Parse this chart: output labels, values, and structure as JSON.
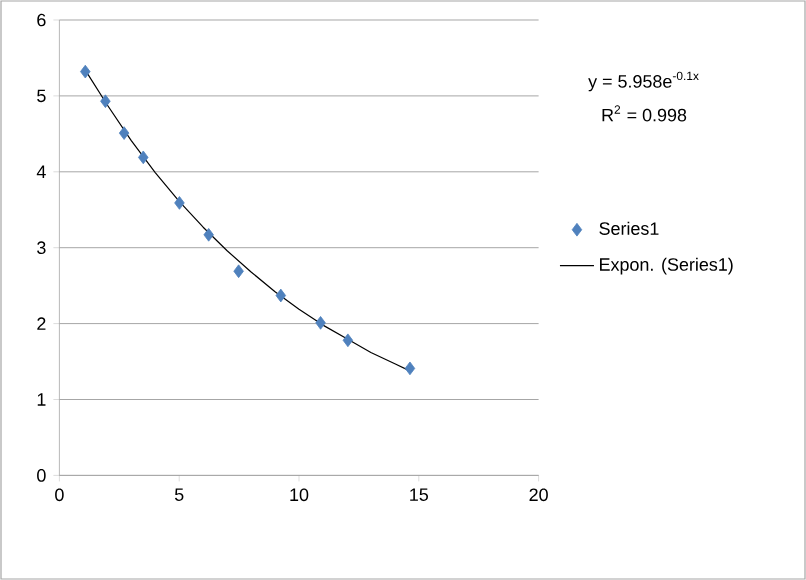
{
  "chart_data": {
    "type": "scatter",
    "series": [
      {
        "name": "Series1",
        "color": "#4f81bd",
        "marker": "diamond",
        "x": [
          1.08,
          1.92,
          2.7,
          3.5,
          5.01,
          6.23,
          7.48,
          9.24,
          10.9,
          12.04,
          14.63
        ],
        "values": [
          5.32,
          4.93,
          4.51,
          4.19,
          3.59,
          3.17,
          2.69,
          2.37,
          2.01,
          1.78,
          1.41
        ]
      },
      {
        "name": "Expon. (Series1)",
        "type": "line",
        "color": "#000000",
        "marker": "none",
        "line_style": "solid",
        "x": [
          1.1,
          2,
          3,
          4,
          5,
          6,
          7,
          8,
          9,
          10,
          11,
          12,
          13,
          14,
          14.6
        ],
        "values": [
          5.33,
          4.88,
          4.41,
          3.99,
          3.61,
          3.27,
          2.96,
          2.68,
          2.42,
          2.19,
          1.98,
          1.8,
          1.62,
          1.47,
          1.38
        ]
      }
    ],
    "xlim": [
      0,
      20
    ],
    "xticks": [
      0,
      5,
      10,
      15,
      20
    ],
    "ylim": [
      0,
      6
    ],
    "yticks": [
      0,
      1,
      2,
      3,
      4,
      5,
      6
    ],
    "grid": "y",
    "legend": "right",
    "annotations": [
      "y = 5.958e$^{-0.1x}$",
      "R$^{2}$ = 0.998"
    ]
  }
}
